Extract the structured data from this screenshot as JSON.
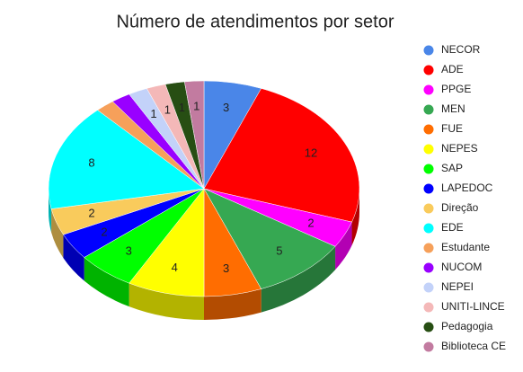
{
  "chart_data": {
    "type": "pie3d",
    "title": "Número de atendimentos por setor",
    "categories": [
      "NECOR",
      "ADE",
      "PPGE",
      "MEN",
      "FUE",
      "NEPES",
      "SAP",
      "LAPEDOC",
      "Direção",
      "EDE",
      "Estudante",
      "NUCOM",
      "NEPEI",
      "UNITI-LINCE",
      "Pedagogia",
      "Biblioteca CE"
    ],
    "values": [
      3,
      12,
      2,
      5,
      3,
      4,
      3,
      2,
      2,
      8,
      1,
      1,
      1,
      1,
      1,
      1
    ],
    "value_labels": [
      "3",
      "12",
      "2",
      "5",
      "3",
      "4",
      "3",
      "2",
      "2",
      "8",
      null,
      null,
      "1",
      "1",
      "1",
      "1"
    ],
    "colors": [
      "#4a86e8",
      "#ff0000",
      "#ff00ff",
      "#36a852",
      "#ff6d01",
      "#ffff00",
      "#00ff00",
      "#0000ff",
      "#f9cb5c",
      "#00ffff",
      "#f6a05a",
      "#9900ff",
      "#c3d2f9",
      "#f4b8b8",
      "#274e13",
      "#c27ba0"
    ],
    "legend": "right"
  }
}
